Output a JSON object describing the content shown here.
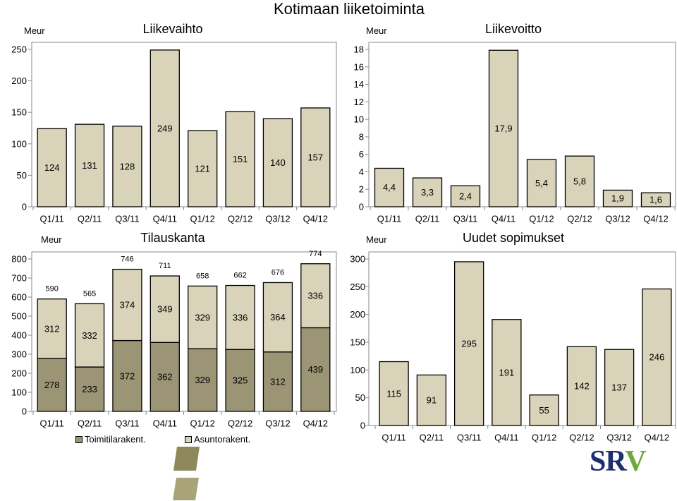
{
  "page": {
    "title": "Kotimaan liiketoiminta"
  },
  "brand": {
    "logo_text": "SRV",
    "logo_primary_color": "#1d2e6e",
    "logo_accent_color": "#6ea93b",
    "decor_color": "#8e895c",
    "decor_color_light": "#a9a477"
  },
  "colors": {
    "bar_fill": "#d9d3ba",
    "bar_stroke": "#000000",
    "frame": "#8a8a8a"
  },
  "chart_data": [
    {
      "type": "bar",
      "title": "Liikevaihto",
      "unit": "Meur",
      "categories": [
        "Q1/11",
        "Q2/11",
        "Q3/11",
        "Q4/11",
        "Q1/12",
        "Q2/12",
        "Q3/12",
        "Q4/12"
      ],
      "values": [
        124,
        131,
        128,
        249,
        121,
        151,
        140,
        157
      ],
      "yticks": [
        0,
        50,
        100,
        150,
        200,
        250
      ],
      "ylim": [
        0,
        250
      ],
      "grid": false
    },
    {
      "type": "bar",
      "title": "Liikevoitto",
      "unit": "Meur",
      "categories": [
        "Q1/11",
        "Q2/11",
        "Q3/11",
        "Q4/11",
        "Q1/12",
        "Q2/12",
        "Q3/12",
        "Q4/12"
      ],
      "values": [
        4.4,
        3.3,
        2.4,
        17.9,
        5.4,
        5.8,
        1.9,
        1.6
      ],
      "value_labels": [
        "4,4",
        "3,3",
        "2,4",
        "17,9",
        "5,4",
        "5,8",
        "1,9",
        "1,6"
      ],
      "yticks": [
        0,
        2,
        4,
        6,
        8,
        10,
        12,
        14,
        16,
        18
      ],
      "ylim": [
        0,
        18
      ],
      "grid": false
    },
    {
      "type": "bar",
      "stacked": true,
      "title": "Tilauskanta",
      "unit": "Meur",
      "categories": [
        "Q1/11",
        "Q2/11",
        "Q3/11",
        "Q4/11",
        "Q1/12",
        "Q2/12",
        "Q3/12",
        "Q4/12"
      ],
      "series": [
        {
          "name": "Toimitilarakent.",
          "color": "#9b9576",
          "values": [
            278,
            233,
            372,
            362,
            329,
            325,
            312,
            439
          ]
        },
        {
          "name": "Asuntorakent.",
          "color": "#d9d3ba",
          "values": [
            312,
            332,
            374,
            349,
            329,
            336,
            364,
            336
          ]
        }
      ],
      "totals": [
        590,
        565,
        746,
        711,
        658,
        662,
        676,
        774
      ],
      "yticks": [
        0,
        100,
        200,
        300,
        400,
        500,
        600,
        700,
        800
      ],
      "ylim": [
        0,
        800
      ],
      "legend": "bottom-left",
      "grid": false
    },
    {
      "type": "bar",
      "title": "Uudet sopimukset",
      "unit": "Meur",
      "categories": [
        "Q1/11",
        "Q2/11",
        "Q3/11",
        "Q4/11",
        "Q1/12",
        "Q2/12",
        "Q3/12",
        "Q4/12"
      ],
      "values": [
        115,
        91,
        295,
        191,
        55,
        142,
        137,
        246
      ],
      "yticks": [
        0,
        50,
        100,
        150,
        200,
        250,
        300
      ],
      "ylim": [
        0,
        300
      ],
      "grid": false
    }
  ]
}
